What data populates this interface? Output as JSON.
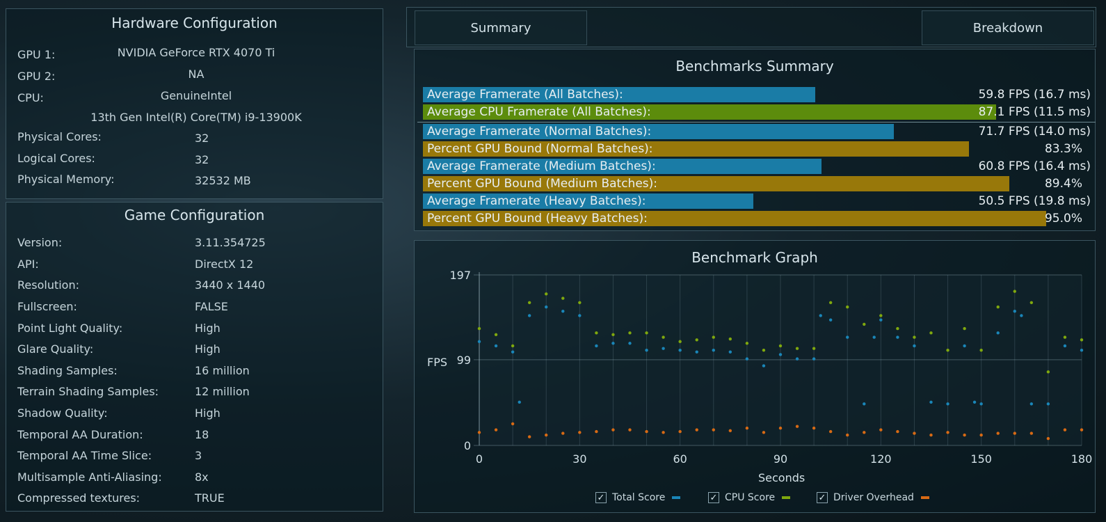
{
  "hardware": {
    "title": "Hardware Configuration",
    "gpu1_label": "GPU 1:",
    "gpu1_value": "NVIDIA GeForce RTX 4070 Ti",
    "gpu2_label": "GPU 2:",
    "gpu2_value": "NA",
    "cpu_label": "CPU:",
    "cpu_vendor": "GenuineIntel",
    "cpu_model": "13th Gen Intel(R) Core(TM) i9-13900K",
    "rows": [
      {
        "label": "Physical Cores:",
        "value": "32"
      },
      {
        "label": "Logical Cores:",
        "value": "32"
      },
      {
        "label": "Physical Memory:",
        "value": "32532  MB"
      }
    ]
  },
  "game": {
    "title": "Game Configuration",
    "rows": [
      {
        "label": "Version:",
        "value": "3.11.354725"
      },
      {
        "label": "API:",
        "value": "DirectX 12"
      },
      {
        "label": "Resolution:",
        "value": "3440 x 1440"
      },
      {
        "label": "Fullscreen:",
        "value": "FALSE"
      },
      {
        "label": "Point Light Quality:",
        "value": "High"
      },
      {
        "label": "Glare Quality:",
        "value": "High"
      },
      {
        "label": "Shading Samples:",
        "value": "16 million"
      },
      {
        "label": "Terrain Shading Samples:",
        "value": "12 million"
      },
      {
        "label": "Shadow Quality:",
        "value": "High"
      },
      {
        "label": "Temporal AA Duration:",
        "value": "18"
      },
      {
        "label": "Temporal AA Time Slice:",
        "value": "3"
      },
      {
        "label": "Multisample Anti-Aliasing:",
        "value": "8x"
      },
      {
        "label": "Compressed textures:",
        "value": "TRUE"
      }
    ]
  },
  "tabs": {
    "summary": "Summary",
    "breakdown": "Breakdown"
  },
  "summary": {
    "title": "Benchmarks Summary",
    "rows": [
      {
        "label": "Average Framerate (All Batches):",
        "value": "59.8 FPS (16.7 ms)",
        "fraction": 0.587,
        "color": "#1a7ca6"
      },
      {
        "label": "Average CPU Framerate (All Batches):",
        "value": "87.1 FPS (11.5 ms)",
        "fraction": 0.858,
        "color": "#5c8c0c"
      },
      {
        "label": "Average Framerate (Normal Batches):",
        "value": "71.7 FPS (14.0 ms)",
        "fraction": 0.705,
        "color": "#1a7ca6"
      },
      {
        "label": "Percent GPU Bound (Normal Batches):",
        "value": "83.3%",
        "fraction": 0.818,
        "color": "#98780a"
      },
      {
        "label": "Average Framerate (Medium Batches):",
        "value": "60.8 FPS (16.4 ms)",
        "fraction": 0.597,
        "color": "#1a7ca6"
      },
      {
        "label": "Percent GPU Bound (Medium Batches):",
        "value": "89.4%",
        "fraction": 0.878,
        "color": "#98780a"
      },
      {
        "label": "Average Framerate (Heavy Batches):",
        "value": "50.5 FPS (19.8 ms)",
        "fraction": 0.495,
        "color": "#1a7ca6"
      },
      {
        "label": "Percent GPU Bound (Heavy Batches):",
        "value": "95.0%",
        "fraction": 0.933,
        "color": "#98780a"
      }
    ]
  },
  "graph": {
    "title": "Benchmark Graph",
    "ylabel": "FPS",
    "xlabel": "Seconds",
    "legend": [
      {
        "label": "Total Score",
        "color": "#1a86b8",
        "checked": true
      },
      {
        "label": "CPU Score",
        "color": "#7fa80e",
        "checked": true
      },
      {
        "label": "Driver Overhead",
        "color": "#d86a14",
        "checked": true
      }
    ]
  },
  "chart_data": {
    "type": "scatter",
    "title": "Benchmark Graph",
    "xlabel": "Seconds",
    "ylabel": "FPS",
    "xlim": [
      0,
      180
    ],
    "ylim": [
      0,
      197
    ],
    "xticks": [
      0,
      30,
      60,
      90,
      120,
      150,
      180
    ],
    "yticks": [
      0,
      99,
      197
    ],
    "series": [
      {
        "name": "Total Score",
        "color": "#1a86b8",
        "x": [
          0,
          5,
          10,
          12,
          15,
          20,
          25,
          30,
          35,
          40,
          45,
          50,
          55,
          60,
          65,
          70,
          75,
          80,
          85,
          90,
          95,
          100,
          102,
          105,
          110,
          115,
          118,
          120,
          125,
          130,
          135,
          140,
          145,
          148,
          150,
          155,
          160,
          162,
          165,
          170,
          175,
          180
        ],
        "y": [
          120,
          115,
          108,
          50,
          150,
          160,
          155,
          150,
          115,
          118,
          118,
          110,
          112,
          110,
          108,
          110,
          108,
          100,
          92,
          105,
          100,
          100,
          150,
          145,
          125,
          48,
          125,
          145,
          125,
          115,
          50,
          48,
          115,
          50,
          48,
          130,
          155,
          150,
          48,
          48,
          115,
          110
        ]
      },
      {
        "name": "CPU Score",
        "color": "#7fa80e",
        "x": [
          0,
          5,
          10,
          15,
          20,
          25,
          30,
          35,
          40,
          45,
          50,
          55,
          60,
          65,
          70,
          75,
          80,
          85,
          90,
          95,
          100,
          105,
          110,
          115,
          120,
          125,
          130,
          135,
          140,
          145,
          150,
          155,
          160,
          165,
          170,
          175,
          180
        ],
        "y": [
          135,
          128,
          115,
          165,
          175,
          170,
          165,
          130,
          128,
          130,
          130,
          125,
          120,
          122,
          125,
          123,
          118,
          110,
          115,
          112,
          112,
          165,
          160,
          140,
          150,
          135,
          125,
          130,
          110,
          135,
          110,
          160,
          178,
          165,
          85,
          125,
          122
        ]
      },
      {
        "name": "Driver Overhead",
        "color": "#d86a14",
        "x": [
          0,
          5,
          10,
          15,
          20,
          25,
          30,
          35,
          40,
          45,
          50,
          55,
          60,
          65,
          70,
          75,
          80,
          85,
          90,
          95,
          100,
          105,
          110,
          115,
          120,
          125,
          130,
          135,
          140,
          145,
          150,
          155,
          160,
          165,
          170,
          175,
          180
        ],
        "y": [
          15,
          18,
          25,
          10,
          12,
          14,
          15,
          16,
          18,
          18,
          16,
          15,
          16,
          18,
          18,
          17,
          20,
          15,
          20,
          22,
          20,
          16,
          12,
          15,
          18,
          16,
          14,
          12,
          15,
          12,
          12,
          14,
          14,
          14,
          8,
          18,
          18
        ]
      }
    ]
  }
}
